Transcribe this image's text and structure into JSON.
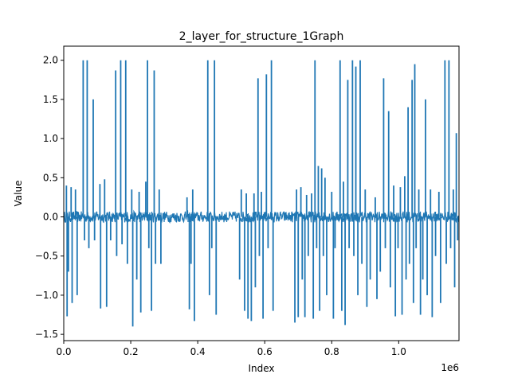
{
  "chart_data": {
    "type": "line",
    "title": "2_layer_for_structure_1Graph",
    "xlabel": "Index",
    "ylabel": "Value",
    "x_offset_label": "1e6",
    "xlim": [
      0,
      1180000
    ],
    "ylim": [
      -1.58,
      2.18
    ],
    "x_ticks": [
      0,
      200000,
      400000,
      600000,
      800000,
      1000000
    ],
    "x_tick_labels": [
      "0.0",
      "0.2",
      "0.4",
      "0.6",
      "0.8",
      "1.0"
    ],
    "y_ticks": [
      -1.5,
      -1.0,
      -0.5,
      0.0,
      0.5,
      1.0,
      1.5,
      2.0
    ],
    "y_tick_labels": [
      "−1.5",
      "−1.0",
      "−0.5",
      "0.0",
      "0.5",
      "1.0",
      "1.5",
      "2.0"
    ],
    "grid": false,
    "color": "#1f77b4",
    "baseline_noise": 0.07,
    "spikes": [
      {
        "x": 8000,
        "y": 0.4
      },
      {
        "x": 10000,
        "y": -1.27
      },
      {
        "x": 14000,
        "y": -0.7
      },
      {
        "x": 22000,
        "y": 0.38
      },
      {
        "x": 25000,
        "y": -1.1
      },
      {
        "x": 35000,
        "y": 0.35
      },
      {
        "x": 40000,
        "y": -1.0
      },
      {
        "x": 58000,
        "y": 2.0
      },
      {
        "x": 62000,
        "y": -0.3
      },
      {
        "x": 70000,
        "y": 2.0
      },
      {
        "x": 75000,
        "y": -0.4
      },
      {
        "x": 88000,
        "y": 1.5
      },
      {
        "x": 92000,
        "y": -0.3
      },
      {
        "x": 108000,
        "y": 0.42
      },
      {
        "x": 110000,
        "y": -1.17
      },
      {
        "x": 122000,
        "y": 0.48
      },
      {
        "x": 128000,
        "y": -1.15
      },
      {
        "x": 140000,
        "y": -0.3
      },
      {
        "x": 155000,
        "y": 1.87
      },
      {
        "x": 158000,
        "y": -0.5
      },
      {
        "x": 170000,
        "y": 2.0
      },
      {
        "x": 174000,
        "y": -0.35
      },
      {
        "x": 185000,
        "y": 2.0
      },
      {
        "x": 190000,
        "y": -0.6
      },
      {
        "x": 203000,
        "y": 0.35
      },
      {
        "x": 206000,
        "y": -1.4
      },
      {
        "x": 218000,
        "y": -0.8
      },
      {
        "x": 225000,
        "y": 0.32
      },
      {
        "x": 230000,
        "y": -1.22
      },
      {
        "x": 245000,
        "y": 0.45
      },
      {
        "x": 250000,
        "y": 2.0
      },
      {
        "x": 254000,
        "y": -0.4
      },
      {
        "x": 262000,
        "y": -1.2
      },
      {
        "x": 270000,
        "y": 1.87
      },
      {
        "x": 274000,
        "y": -0.6
      },
      {
        "x": 285000,
        "y": 0.35
      },
      {
        "x": 290000,
        "y": -0.6
      },
      {
        "x": 368000,
        "y": 0.25
      },
      {
        "x": 375000,
        "y": -1.18
      },
      {
        "x": 380000,
        "y": -0.6
      },
      {
        "x": 385000,
        "y": 0.35
      },
      {
        "x": 390000,
        "y": -1.33
      },
      {
        "x": 430000,
        "y": 2.0
      },
      {
        "x": 435000,
        "y": -1.0
      },
      {
        "x": 442000,
        "y": -0.4
      },
      {
        "x": 450000,
        "y": 2.0
      },
      {
        "x": 455000,
        "y": -1.25
      },
      {
        "x": 525000,
        "y": -0.8
      },
      {
        "x": 530000,
        "y": 0.35
      },
      {
        "x": 540000,
        "y": -1.2
      },
      {
        "x": 545000,
        "y": 0.3
      },
      {
        "x": 550000,
        "y": -1.3
      },
      {
        "x": 560000,
        "y": -1.33
      },
      {
        "x": 568000,
        "y": 0.3
      },
      {
        "x": 572000,
        "y": -0.9
      },
      {
        "x": 580000,
        "y": 1.77
      },
      {
        "x": 584000,
        "y": -0.5
      },
      {
        "x": 590000,
        "y": 0.32
      },
      {
        "x": 595000,
        "y": -1.3
      },
      {
        "x": 605000,
        "y": 1.82
      },
      {
        "x": 610000,
        "y": -0.4
      },
      {
        "x": 620000,
        "y": 2.0
      },
      {
        "x": 625000,
        "y": -1.2
      },
      {
        "x": 690000,
        "y": -1.35
      },
      {
        "x": 695000,
        "y": 0.35
      },
      {
        "x": 700000,
        "y": -1.28
      },
      {
        "x": 708000,
        "y": 0.38
      },
      {
        "x": 712000,
        "y": -0.8
      },
      {
        "x": 720000,
        "y": -1.28
      },
      {
        "x": 725000,
        "y": 0.28
      },
      {
        "x": 730000,
        "y": -0.5
      },
      {
        "x": 740000,
        "y": 0.3
      },
      {
        "x": 745000,
        "y": -1.3
      },
      {
        "x": 750000,
        "y": 2.0
      },
      {
        "x": 755000,
        "y": -0.4
      },
      {
        "x": 760000,
        "y": 0.65
      },
      {
        "x": 764000,
        "y": -1.2
      },
      {
        "x": 770000,
        "y": 0.62
      },
      {
        "x": 775000,
        "y": -0.5
      },
      {
        "x": 780000,
        "y": 0.5
      },
      {
        "x": 785000,
        "y": -1.0
      },
      {
        "x": 800000,
        "y": 0.32
      },
      {
        "x": 805000,
        "y": -1.3
      },
      {
        "x": 810000,
        "y": -0.4
      },
      {
        "x": 825000,
        "y": 2.0
      },
      {
        "x": 830000,
        "y": -1.2
      },
      {
        "x": 835000,
        "y": 0.45
      },
      {
        "x": 840000,
        "y": -1.38
      },
      {
        "x": 848000,
        "y": 1.75
      },
      {
        "x": 852000,
        "y": -0.4
      },
      {
        "x": 862000,
        "y": 2.0
      },
      {
        "x": 866000,
        "y": -0.5
      },
      {
        "x": 872000,
        "y": 1.92
      },
      {
        "x": 878000,
        "y": -1.0
      },
      {
        "x": 885000,
        "y": 2.0
      },
      {
        "x": 890000,
        "y": -0.6
      },
      {
        "x": 900000,
        "y": 0.35
      },
      {
        "x": 905000,
        "y": -1.15
      },
      {
        "x": 915000,
        "y": -0.8
      },
      {
        "x": 930000,
        "y": 0.25
      },
      {
        "x": 935000,
        "y": -1.05
      },
      {
        "x": 945000,
        "y": -0.7
      },
      {
        "x": 955000,
        "y": 1.77
      },
      {
        "x": 960000,
        "y": -0.4
      },
      {
        "x": 970000,
        "y": 1.35
      },
      {
        "x": 975000,
        "y": -0.9
      },
      {
        "x": 985000,
        "y": 0.4
      },
      {
        "x": 990000,
        "y": -1.27
      },
      {
        "x": 998000,
        "y": -0.4
      },
      {
        "x": 1005000,
        "y": 0.38
      },
      {
        "x": 1010000,
        "y": -1.25
      },
      {
        "x": 1018000,
        "y": 0.52
      },
      {
        "x": 1022000,
        "y": -0.8
      },
      {
        "x": 1028000,
        "y": 1.4
      },
      {
        "x": 1032000,
        "y": -0.6
      },
      {
        "x": 1040000,
        "y": 1.75
      },
      {
        "x": 1044000,
        "y": -1.1
      },
      {
        "x": 1048000,
        "y": 1.95
      },
      {
        "x": 1052000,
        "y": -0.4
      },
      {
        "x": 1060000,
        "y": 0.35
      },
      {
        "x": 1065000,
        "y": -1.25
      },
      {
        "x": 1072000,
        "y": -0.8
      },
      {
        "x": 1080000,
        "y": 1.5
      },
      {
        "x": 1085000,
        "y": -1.0
      },
      {
        "x": 1095000,
        "y": 0.35
      },
      {
        "x": 1100000,
        "y": -1.28
      },
      {
        "x": 1110000,
        "y": -0.5
      },
      {
        "x": 1120000,
        "y": 0.32
      },
      {
        "x": 1125000,
        "y": -1.1
      },
      {
        "x": 1138000,
        "y": 2.0
      },
      {
        "x": 1142000,
        "y": -0.6
      },
      {
        "x": 1150000,
        "y": 2.0
      },
      {
        "x": 1155000,
        "y": -0.4
      },
      {
        "x": 1163000,
        "y": 0.35
      },
      {
        "x": 1167000,
        "y": -0.9
      },
      {
        "x": 1172000,
        "y": 1.07
      },
      {
        "x": 1176000,
        "y": -0.3
      }
    ]
  }
}
